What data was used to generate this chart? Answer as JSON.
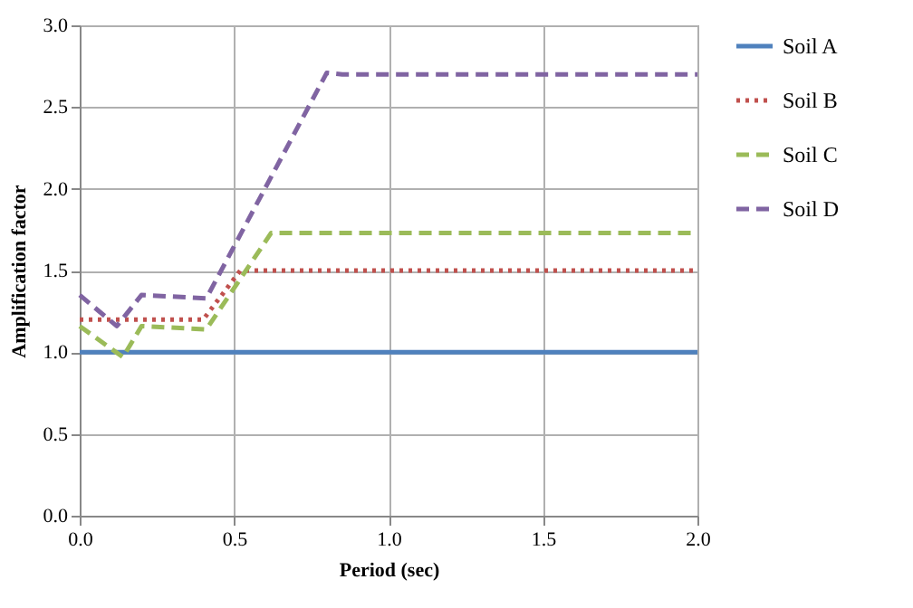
{
  "chart_data": {
    "type": "line",
    "xlabel": "Period (sec)",
    "ylabel": "Amplification factor",
    "xlim": [
      0,
      2
    ],
    "xticks": [
      {
        "value": 0,
        "label": "0.0"
      },
      {
        "value": 0.5,
        "label": "0.5"
      },
      {
        "value": 1,
        "label": "1.0"
      },
      {
        "value": 1.5,
        "label": "1.5"
      },
      {
        "value": 2,
        "label": "2.0"
      }
    ],
    "ylim": [
      0,
      3
    ],
    "yticks": [
      {
        "value": 0,
        "label": "0.0"
      },
      {
        "value": 0.5,
        "label": "0.5"
      },
      {
        "value": 1,
        "label": "1.0"
      },
      {
        "value": 1.5,
        "label": "1.5"
      },
      {
        "value": 2,
        "label": "2.0"
      },
      {
        "value": 2.5,
        "label": "2.5"
      },
      {
        "value": 3,
        "label": "3.0"
      }
    ],
    "grid": true,
    "legend": "right",
    "marker": "none",
    "series": [
      {
        "name": "Soil A",
        "color": "#4f81bd",
        "line_style": "solid",
        "x": [
          0,
          2
        ],
        "values": [
          1,
          1
        ]
      },
      {
        "name": "Soil B",
        "color": "#c0504d",
        "line_style": "dotted",
        "x": [
          0,
          0.4,
          0.52,
          2
        ],
        "values": [
          1.2,
          1.2,
          1.5,
          1.5
        ]
      },
      {
        "name": "Soil C",
        "color": "#9bbb59",
        "line_style": "dashed",
        "x": [
          0,
          0.14,
          0.2,
          0.41,
          0.62,
          2
        ],
        "values": [
          1.16,
          0.97,
          1.16,
          1.14,
          1.73,
          1.73
        ]
      },
      {
        "name": "Soil D",
        "color": "#8064a2",
        "line_style": "dashed",
        "x": [
          0,
          0.12,
          0.2,
          0.41,
          0.8,
          0.85,
          2
        ],
        "values": [
          1.35,
          1.16,
          1.35,
          1.33,
          2.71,
          2.7,
          2.7
        ]
      }
    ]
  }
}
